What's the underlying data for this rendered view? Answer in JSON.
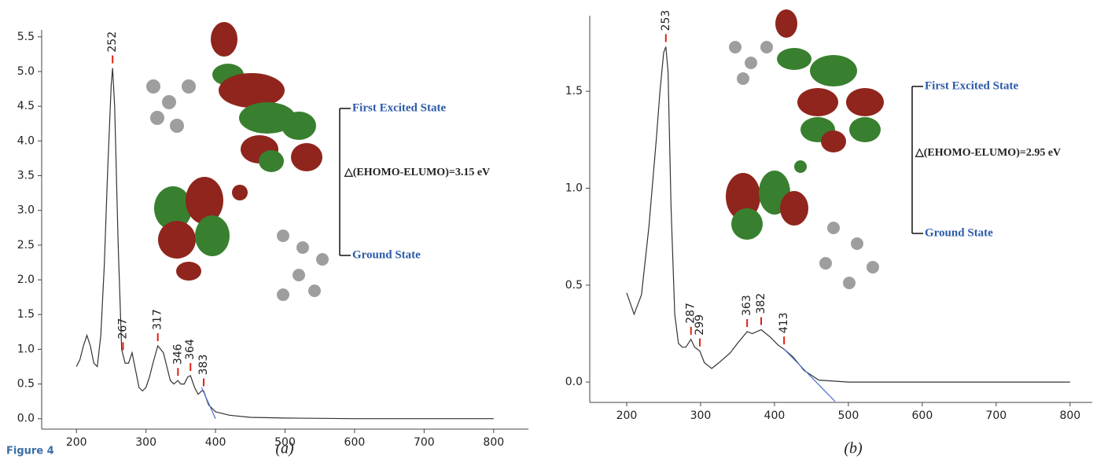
{
  "figure_label": "Figure 4",
  "chart_data": [
    {
      "type": "line",
      "caption": "(a)",
      "color": "#333333",
      "x": [
        200,
        205,
        210,
        215,
        220,
        225,
        230,
        235,
        240,
        245,
        250,
        252,
        255,
        260,
        265,
        270,
        275,
        280,
        285,
        290,
        295,
        300,
        305,
        310,
        317,
        325,
        330,
        335,
        340,
        346,
        350,
        355,
        360,
        364,
        370,
        375,
        380,
        383,
        390,
        400,
        420,
        450,
        500,
        600,
        700,
        800
      ],
      "values": [
        0.75,
        0.85,
        1.05,
        1.2,
        1.05,
        0.8,
        0.75,
        1.2,
        2.2,
        3.6,
        4.8,
        5.05,
        4.5,
        2.5,
        1.0,
        0.8,
        0.8,
        0.95,
        0.7,
        0.45,
        0.4,
        0.45,
        0.6,
        0.8,
        1.05,
        0.95,
        0.75,
        0.55,
        0.5,
        0.55,
        0.5,
        0.5,
        0.6,
        0.62,
        0.45,
        0.35,
        0.4,
        0.4,
        0.2,
        0.1,
        0.05,
        0.02,
        0.01,
        0,
        0,
        0
      ],
      "peaks": [
        252,
        267,
        317,
        346,
        364,
        383
      ],
      "tangent": {
        "color": "#4a6fd0",
        "x": [
          380,
          400
        ],
        "values": [
          0.45,
          0
        ]
      },
      "xlim": [
        150,
        850
      ],
      "ylim": [
        -0.15,
        5.6
      ],
      "xticks": [
        200,
        300,
        400,
        500,
        600,
        700,
        800
      ],
      "yticks": [
        {
          "value": 0,
          "label": "0.0"
        },
        0.5,
        {
          "value": 1,
          "label": "1.0"
        },
        1.5,
        {
          "value": 2,
          "label": "2.0"
        },
        2.5,
        {
          "value": 3,
          "label": "3.0"
        },
        3.5,
        {
          "value": 4,
          "label": "4.0"
        },
        4.5,
        {
          "value": 5,
          "label": "5.0"
        },
        5.5
      ],
      "excited_label": "First Excited State",
      "ground_label": "Ground State",
      "gap_label": "△(EHOMO-ELUMO)=3.15 eV"
    },
    {
      "type": "line",
      "caption": "(b)",
      "color": "#333333",
      "x": [
        200,
        210,
        220,
        230,
        240,
        245,
        250,
        253,
        256,
        260,
        265,
        270,
        275,
        280,
        287,
        292,
        299,
        305,
        315,
        325,
        340,
        350,
        363,
        370,
        382,
        395,
        405,
        413,
        425,
        440,
        460,
        500,
        600,
        700,
        800
      ],
      "values": [
        0.46,
        0.35,
        0.45,
        0.8,
        1.25,
        1.5,
        1.7,
        1.73,
        1.6,
        0.9,
        0.35,
        0.2,
        0.18,
        0.18,
        0.22,
        0.18,
        0.16,
        0.1,
        0.07,
        0.1,
        0.15,
        0.2,
        0.26,
        0.25,
        0.27,
        0.23,
        0.19,
        0.17,
        0.13,
        0.06,
        0.01,
        0,
        0,
        0,
        0
      ],
      "peaks": [
        253,
        287,
        299,
        363,
        382,
        413
      ],
      "tangent": {
        "color": "#4a6fd0",
        "x": [
          413,
          482
        ],
        "values": [
          0.17,
          -0.1
        ]
      },
      "xlim": [
        150,
        830
      ],
      "ylim": [
        -0.105,
        1.89
      ],
      "xticks": [
        200,
        300,
        400,
        500,
        600,
        700,
        800
      ],
      "yticks": [
        {
          "value": 0,
          "label": "0.0"
        },
        0.5,
        {
          "value": 1,
          "label": "1.0"
        },
        1.5
      ],
      "excited_label": "First Excited State",
      "ground_label": "Ground State",
      "gap_label": "△(EHOMO-ELUMO)=2.95 eV"
    }
  ]
}
